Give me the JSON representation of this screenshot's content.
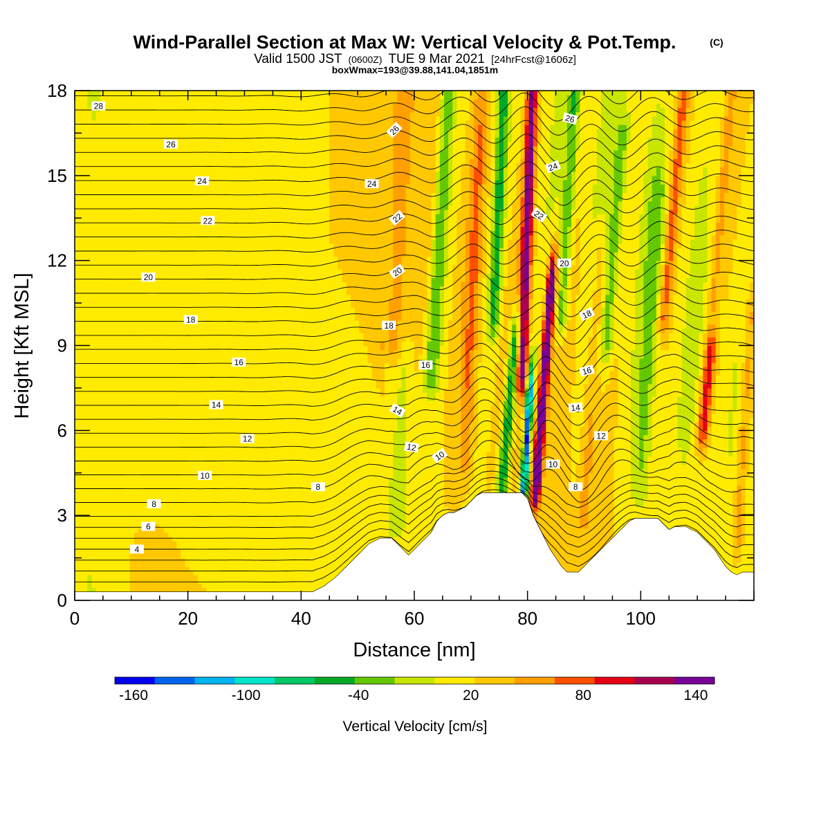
{
  "title": "Wind-Parallel Section at Max W: Vertical Velocity & Pot.Temp.",
  "copyright_mark": "(C)",
  "subtitle_valid": "Valid 1500 JST",
  "subtitle_utc": "(0600Z)",
  "subtitle_date": "TUE 9 Mar 2021",
  "subtitle_fcst": "[24hrFcst@1606z]",
  "box_info": "boxWmax=193@39.88,141.04,1851m",
  "chart_data": {
    "type": "heatmap",
    "xlabel": "Distance [nm]",
    "ylabel": "Height [Kft MSL]",
    "xlim": [
      0,
      120
    ],
    "ylim": [
      0,
      18
    ],
    "x_ticks": [
      "0",
      "20",
      "40",
      "60",
      "80",
      "100"
    ],
    "y_ticks": [
      "0",
      "3",
      "6",
      "9",
      "12",
      "15",
      "18"
    ],
    "colorbar": {
      "label": "Vertical Velocity [cm/s]",
      "tick_labels": [
        "-160",
        "-100",
        "-40",
        "20",
        "80",
        "140"
      ],
      "range": [
        -170,
        150
      ],
      "bin_width": 20,
      "colors": [
        "#0000f0",
        "#0064f0",
        "#00b4f0",
        "#00e6c8",
        "#00c864",
        "#00aa28",
        "#64c800",
        "#c8e600",
        "#ffeb00",
        "#ffc800",
        "#ffa000",
        "#ff5000",
        "#e60014",
        "#aa0050",
        "#780096"
      ]
    },
    "terrain_kft": [
      [
        0,
        0.3
      ],
      [
        42,
        0.3
      ],
      [
        44,
        0.5
      ],
      [
        46,
        0.8
      ],
      [
        48,
        1.2
      ],
      [
        50,
        1.6
      ],
      [
        52,
        2.0
      ],
      [
        54,
        2.2
      ],
      [
        56,
        2.2
      ],
      [
        57,
        2.0
      ],
      [
        58,
        1.8
      ],
      [
        59,
        1.6
      ],
      [
        60,
        1.8
      ],
      [
        61,
        2.0
      ],
      [
        62,
        2.2
      ],
      [
        63,
        2.4
      ],
      [
        64,
        2.8
      ],
      [
        65,
        3.0
      ],
      [
        66,
        3.1
      ],
      [
        67,
        3.1
      ],
      [
        68,
        3.2
      ],
      [
        69,
        3.3
      ],
      [
        70,
        3.5
      ],
      [
        71,
        3.7
      ],
      [
        72,
        3.8
      ],
      [
        79,
        3.8
      ],
      [
        80,
        3.6
      ],
      [
        81,
        3.0
      ],
      [
        82,
        2.6
      ],
      [
        83,
        2.2
      ],
      [
        84,
        1.8
      ],
      [
        85,
        1.5
      ],
      [
        86,
        1.2
      ],
      [
        87,
        1.0
      ],
      [
        89,
        1.0
      ],
      [
        90,
        1.2
      ],
      [
        91,
        1.4
      ],
      [
        92,
        1.6
      ],
      [
        93,
        1.8
      ],
      [
        94,
        2.0
      ],
      [
        95,
        2.2
      ],
      [
        96,
        2.4
      ],
      [
        97,
        2.6
      ],
      [
        98,
        2.8
      ],
      [
        99,
        2.9
      ],
      [
        103,
        2.9
      ],
      [
        104,
        2.7
      ],
      [
        105,
        2.5
      ],
      [
        106,
        2.6
      ],
      [
        108,
        2.6
      ],
      [
        109,
        2.5
      ],
      [
        110,
        2.4
      ],
      [
        111,
        2.2
      ],
      [
        112,
        2.0
      ],
      [
        113,
        1.8
      ],
      [
        114,
        1.5
      ],
      [
        115,
        1.2
      ],
      [
        116,
        1.0
      ],
      [
        117,
        0.9
      ],
      [
        118,
        1.0
      ],
      [
        120,
        1.0
      ]
    ],
    "updrafts": [
      {
        "x": 56,
        "w": 40,
        "h0": 9,
        "h1": 18,
        "sx": 1.8,
        "tilt": 0.18
      },
      {
        "x": 79,
        "w": 110,
        "h0": 8,
        "h1": 18,
        "sx": 0.9,
        "tilt": 0.12
      },
      {
        "x": 81.5,
        "w": 150,
        "h0": 4,
        "h1": 11,
        "sx": 0.8,
        "tilt": 0.25
      },
      {
        "x": 90,
        "w": 30,
        "h0": 3,
        "h1": 12,
        "sx": 1.2,
        "tilt": 0.2
      },
      {
        "x": 104,
        "w": 50,
        "h0": 10,
        "h1": 18,
        "sx": 1.0,
        "tilt": 0.3
      },
      {
        "x": 111,
        "w": 80,
        "h0": 6,
        "h1": 18,
        "sx": 1.0,
        "tilt": 0.3
      },
      {
        "x": 117,
        "w": 40,
        "h0": 2,
        "h1": 10,
        "sx": 1.1,
        "tilt": 0.2
      },
      {
        "x": 69,
        "w": 30,
        "h0": 5,
        "h1": 18,
        "sx": 1.2,
        "tilt": 0.15
      }
    ],
    "downdrafts": [
      {
        "x": 63,
        "w": -50,
        "h0": 8,
        "h1": 18,
        "sx": 1.3,
        "tilt": 0.2
      },
      {
        "x": 74,
        "w": -60,
        "h0": 10,
        "h1": 18,
        "sx": 1.0,
        "tilt": 0.15
      },
      {
        "x": 75.5,
        "w": -90,
        "h0": 4,
        "h1": 9,
        "sx": 1.0,
        "tilt": 0.3
      },
      {
        "x": 79.3,
        "w": -160,
        "h0": 3.8,
        "h1": 7,
        "sx": 0.55,
        "tilt": 0.2
      },
      {
        "x": 86,
        "w": -50,
        "h0": 10,
        "h1": 18,
        "sx": 1.1,
        "tilt": 0.2
      },
      {
        "x": 94,
        "w": -40,
        "h0": 9,
        "h1": 16,
        "sx": 1.2,
        "tilt": 0.25
      },
      {
        "x": 113,
        "w": -60,
        "h0": 10,
        "h1": 18,
        "sx": 1.0,
        "tilt": 0.3
      },
      {
        "x": 100,
        "w": -30,
        "h0": 4,
        "h1": 14,
        "sx": 1.5,
        "tilt": 0.2
      },
      {
        "x": 57,
        "w": -30,
        "h0": 3,
        "h1": 8,
        "sx": 1.5,
        "tilt": 0.2
      }
    ],
    "isentropes_kft_at_x0": [
      0.4,
      0.8,
      1.2,
      1.6,
      2.0,
      2.4,
      2.8,
      3.3,
      3.8,
      4.3,
      4.8,
      5.3,
      5.8,
      6.3,
      6.8,
      7.3,
      7.8,
      8.3,
      8.8,
      9.3,
      9.8,
      10.3,
      10.8,
      11.3,
      11.8,
      12.3,
      12.8,
      13.3,
      13.8,
      14.3,
      14.8,
      15.3,
      15.8,
      16.3,
      16.8,
      17.3,
      17.8
    ],
    "theta_labels": [
      {
        "text": "28",
        "x": 4.2,
        "y": 17.45,
        "rot": 0
      },
      {
        "text": "26",
        "x": 17,
        "y": 16.1,
        "rot": 0
      },
      {
        "text": "24",
        "x": 22.5,
        "y": 14.8,
        "rot": 0
      },
      {
        "text": "24",
        "x": 52.5,
        "y": 14.7,
        "rot": 0
      },
      {
        "text": "26",
        "x": 56.5,
        "y": 16.6,
        "rot": -45
      },
      {
        "text": "26",
        "x": 87.5,
        "y": 17.0,
        "rot": 15
      },
      {
        "text": "24",
        "x": 84.5,
        "y": 15.3,
        "rot": -20
      },
      {
        "text": "22",
        "x": 23.5,
        "y": 13.4,
        "rot": 0
      },
      {
        "text": "22",
        "x": 57,
        "y": 13.5,
        "rot": -40
      },
      {
        "text": "22",
        "x": 82,
        "y": 13.6,
        "rot": 35
      },
      {
        "text": "20",
        "x": 13,
        "y": 11.4,
        "rot": 0
      },
      {
        "text": "20",
        "x": 57,
        "y": 11.6,
        "rot": -35
      },
      {
        "text": "20",
        "x": 86.5,
        "y": 11.9,
        "rot": 0
      },
      {
        "text": "18",
        "x": 20.5,
        "y": 9.9,
        "rot": 0
      },
      {
        "text": "18",
        "x": 55.5,
        "y": 9.7,
        "rot": 0
      },
      {
        "text": "18",
        "x": 90.5,
        "y": 10.1,
        "rot": -25
      },
      {
        "text": "16",
        "x": 29,
        "y": 8.4,
        "rot": 0
      },
      {
        "text": "16",
        "x": 62,
        "y": 8.3,
        "rot": 0
      },
      {
        "text": "16",
        "x": 90.5,
        "y": 8.1,
        "rot": -15
      },
      {
        "text": "14",
        "x": 25,
        "y": 6.9,
        "rot": 0
      },
      {
        "text": "14",
        "x": 57,
        "y": 6.7,
        "rot": 30
      },
      {
        "text": "14",
        "x": 88.5,
        "y": 6.8,
        "rot": -5
      },
      {
        "text": "12",
        "x": 30.5,
        "y": 5.7,
        "rot": 0
      },
      {
        "text": "12",
        "x": 59.5,
        "y": 5.4,
        "rot": 10
      },
      {
        "text": "12",
        "x": 93,
        "y": 5.8,
        "rot": 0
      },
      {
        "text": "10",
        "x": 23,
        "y": 4.4,
        "rot": 0
      },
      {
        "text": "10",
        "x": 64.5,
        "y": 5.1,
        "rot": -35
      },
      {
        "text": "10",
        "x": 84.5,
        "y": 4.8,
        "rot": 0
      },
      {
        "text": "8",
        "x": 43,
        "y": 4.0,
        "rot": 0
      },
      {
        "text": "8",
        "x": 14,
        "y": 3.4,
        "rot": 0
      },
      {
        "text": "8",
        "x": 88.5,
        "y": 4.0,
        "rot": 0
      },
      {
        "text": "6",
        "x": 13,
        "y": 2.6,
        "rot": 0
      },
      {
        "text": "4",
        "x": 11,
        "y": 1.8,
        "rot": 0
      }
    ]
  }
}
